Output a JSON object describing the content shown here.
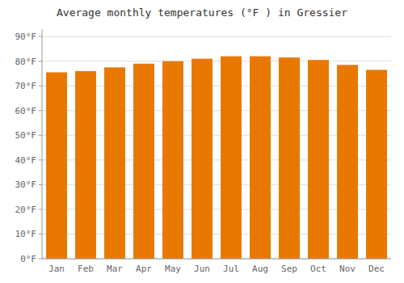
{
  "chart_data": {
    "type": "bar",
    "title": "Average monthly temperatures (°F ) in Gressier",
    "categories": [
      "Jan",
      "Feb",
      "Mar",
      "Apr",
      "May",
      "Jun",
      "Jul",
      "Aug",
      "Sep",
      "Oct",
      "Nov",
      "Dec"
    ],
    "values": [
      75.5,
      76.0,
      77.5,
      79.0,
      80.0,
      81.0,
      82.0,
      82.0,
      81.5,
      80.5,
      78.5,
      76.5
    ],
    "color": "#E87800",
    "ylim": [
      0,
      93
    ],
    "yticks": [
      {
        "value": 0,
        "label": "0°F"
      },
      {
        "value": 10,
        "label": "10°F"
      },
      {
        "value": 20,
        "label": "20°F"
      },
      {
        "value": 30,
        "label": "30°F"
      },
      {
        "value": 40,
        "label": "40°F"
      },
      {
        "value": 50,
        "label": "50°F"
      },
      {
        "value": 60,
        "label": "60°F"
      },
      {
        "value": 70,
        "label": "70°F"
      },
      {
        "value": 80,
        "label": "80°F"
      },
      {
        "value": 90,
        "label": "90°F"
      }
    ],
    "grid": true
  }
}
